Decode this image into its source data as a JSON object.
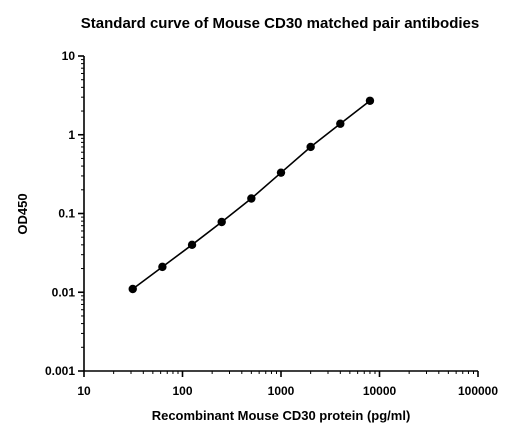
{
  "chart_data": {
    "type": "scatter",
    "title": "Standard curve of Mouse CD30 matched pair antibodies",
    "xlabel": "Recombinant Mouse CD30 protein (pg/ml)",
    "ylabel": "OD450",
    "x_scale": "log",
    "y_scale": "log",
    "xlim": [
      10,
      100000
    ],
    "ylim": [
      0.001,
      10
    ],
    "x_ticks": [
      10,
      100,
      1000,
      10000,
      100000
    ],
    "x_tick_labels": [
      "10",
      "100",
      "1000",
      "10000",
      "100000"
    ],
    "y_ticks": [
      0.001,
      0.01,
      0.1,
      1,
      10
    ],
    "y_tick_labels": [
      "0.001",
      "0.01",
      "0.1",
      "1",
      "10"
    ],
    "grid": false,
    "fit_line": true,
    "marker_color": "#000000",
    "series": [
      {
        "x": [
          31.25,
          62.5,
          125,
          250,
          500,
          1000,
          2000,
          4000,
          8000
        ],
        "y": [
          0.011,
          0.021,
          0.04,
          0.078,
          0.155,
          0.33,
          0.7,
          1.38,
          2.7
        ]
      }
    ]
  }
}
